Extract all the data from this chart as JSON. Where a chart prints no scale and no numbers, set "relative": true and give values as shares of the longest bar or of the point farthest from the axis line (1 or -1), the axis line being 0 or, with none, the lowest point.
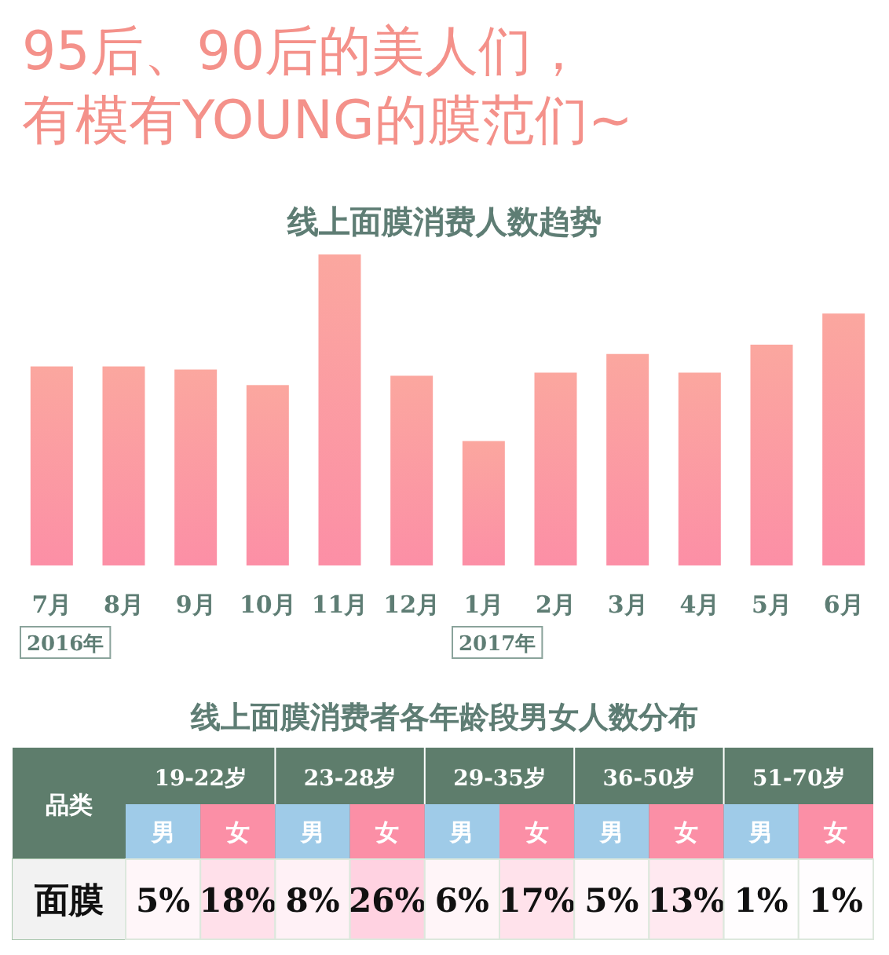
{
  "chart_data": [
    {
      "type": "bar",
      "title": "95后、90后的美人们，有模有YOUNG的膜范们~",
      "subtitle": "线上面膜消费人数趋势",
      "relative": true,
      "categories": [
        "7月",
        "8月",
        "9月",
        "10月",
        "11月",
        "12月",
        "1月",
        "2月",
        "3月",
        "4月",
        "5月",
        "6月"
      ],
      "values": [
        0.64,
        0.64,
        0.63,
        0.58,
        1,
        0.61,
        0.4,
        0.62,
        0.68,
        0.62,
        0.71,
        0.81
      ],
      "color": "#fc8fa6",
      "annotations": [
        "2016年",
        "2017年"
      ]
    },
    {
      "type": "heatmap",
      "title": "线上面膜消费者各年龄段男女人数分布",
      "ylabel": "品类",
      "categories": [
        "男",
        "女",
        "男",
        "女",
        "男",
        "女",
        "男",
        "女",
        "男",
        "女"
      ],
      "y_categories": [
        "面膜"
      ],
      "cells": [
        [
          5,
          18,
          8,
          26,
          6,
          17,
          5,
          13,
          1,
          1
        ]
      ],
      "cell_labels": [
        [
          "5%",
          "18%",
          "8%",
          "26%",
          "6%",
          "17%",
          "5%",
          "13%",
          "1%",
          "1%"
        ]
      ],
      "annotations": [
        "19-22岁",
        "23-28岁",
        "29-35岁",
        "36-50岁",
        "51-70岁"
      ]
    }
  ]
}
